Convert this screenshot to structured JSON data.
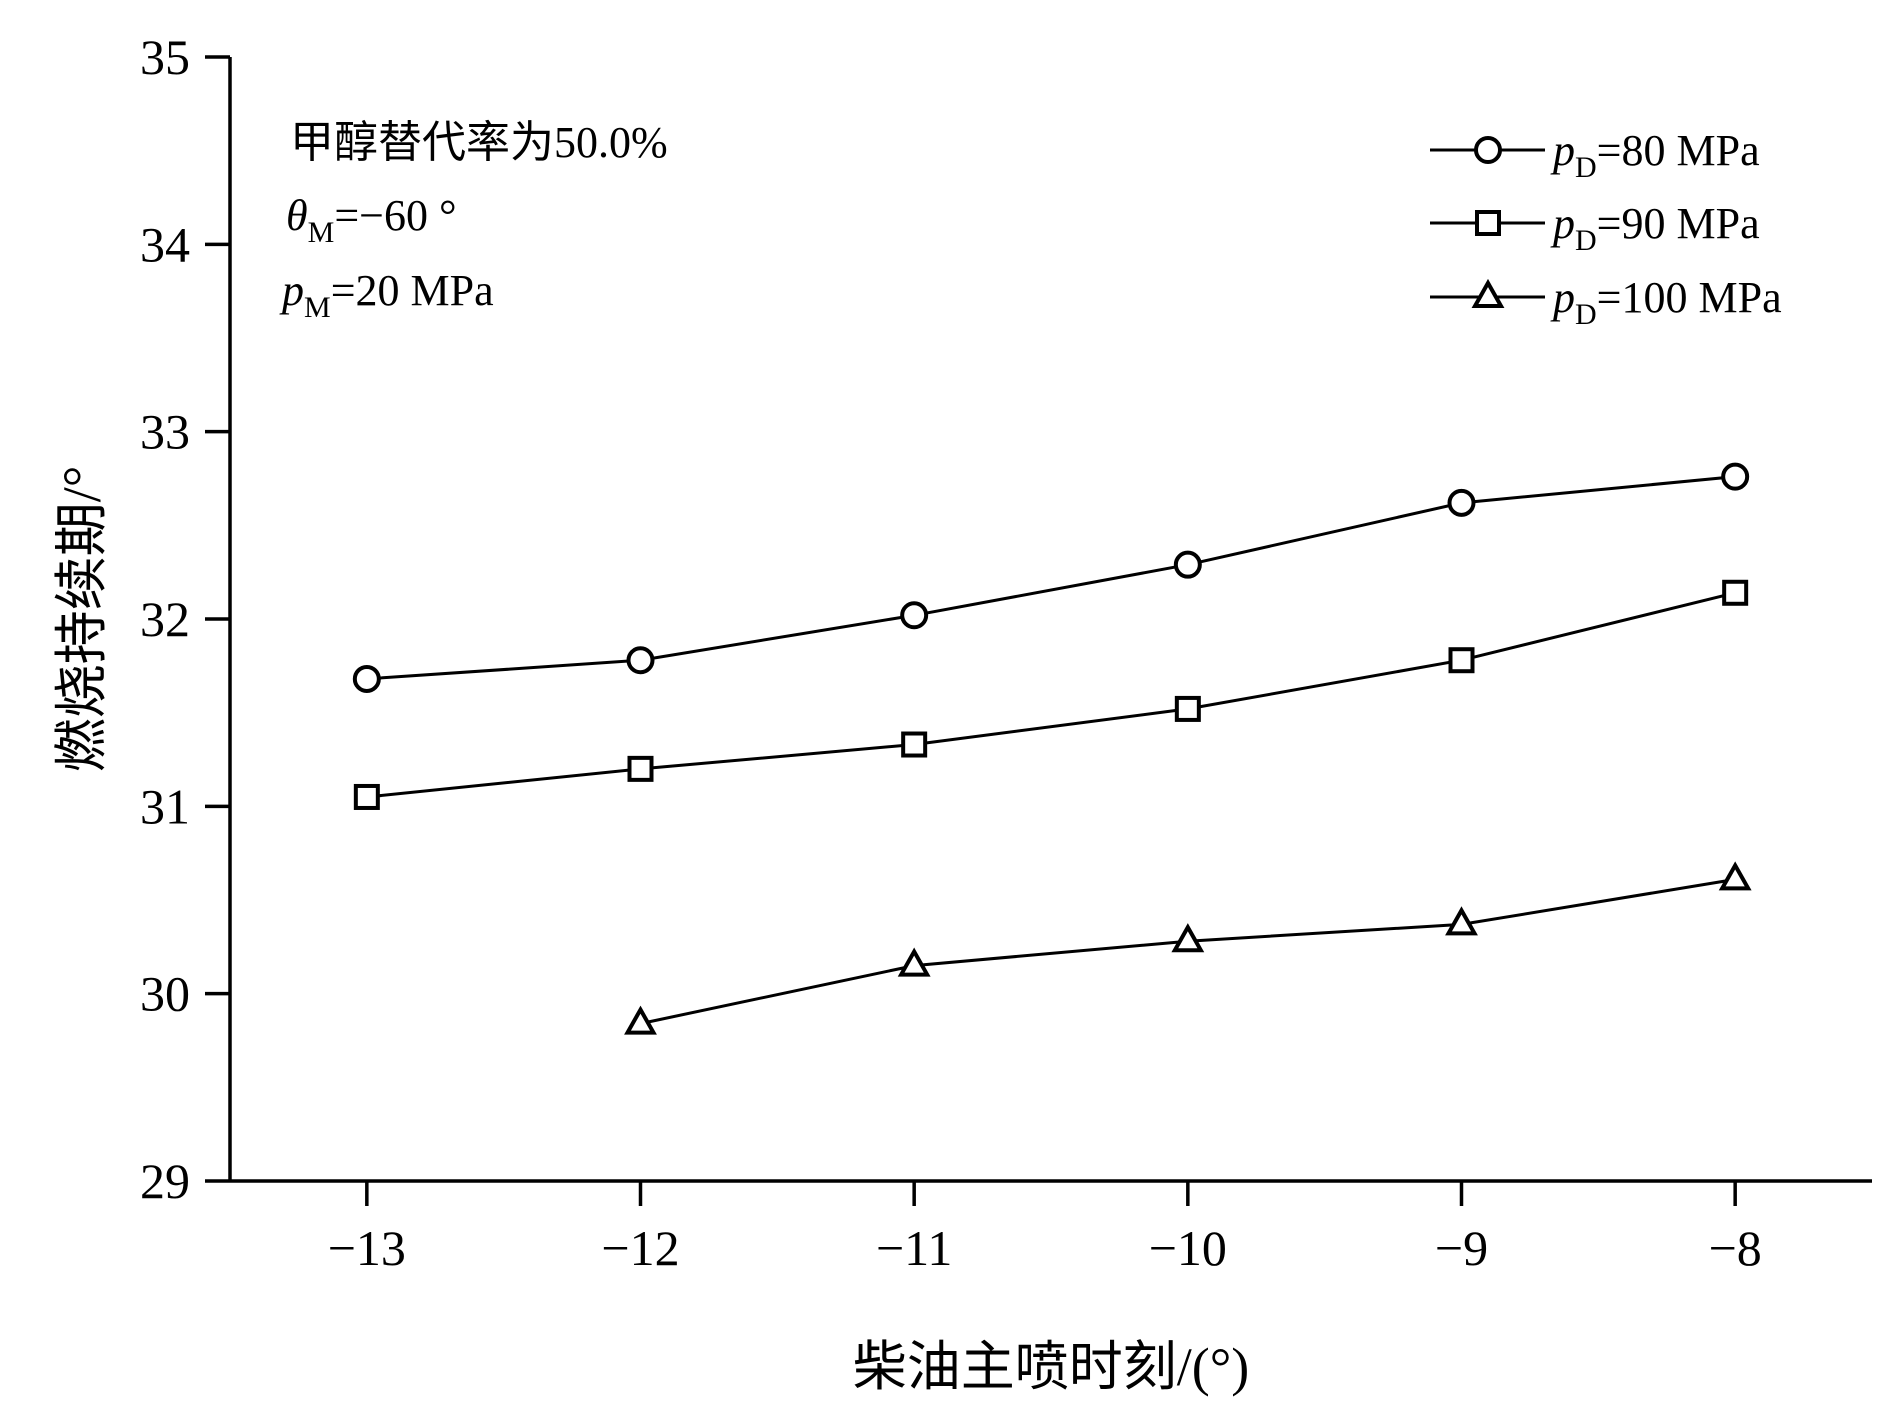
{
  "chart_data": {
    "type": "line",
    "xlabel": "柴油主喷时刻/(°)",
    "ylabel": "燃烧持续期/°",
    "xlim": [
      -13.5,
      -7.5
    ],
    "ylim": [
      29,
      35
    ],
    "x_ticks": [
      -13,
      -12,
      -11,
      -10,
      -9,
      -8
    ],
    "x_tick_labels": [
      "−13",
      "−12",
      "−11",
      "−10",
      "−9",
      "−8"
    ],
    "y_ticks": [
      29,
      30,
      31,
      32,
      33,
      34,
      35
    ],
    "y_tick_labels": [
      "29",
      "30",
      "31",
      "32",
      "33",
      "34",
      "35"
    ],
    "grid": false,
    "legend_position": "top-right",
    "annotations": [
      {
        "id": "rate",
        "text": "甲醇替代率为50.0%"
      },
      {
        "id": "theta",
        "symbol": "θ",
        "sub": "M",
        "rest": "=−60 °"
      },
      {
        "id": "pm",
        "symbol": "p",
        "sub": "M",
        "rest": "=20 MPa"
      }
    ],
    "series": [
      {
        "name": "pD=80 MPa",
        "symbol": "p",
        "sub": "D",
        "rest": "=80 MPa",
        "marker": "circle",
        "x": [
          -13,
          -12,
          -11,
          -10,
          -9,
          -8
        ],
        "y": [
          31.68,
          31.78,
          32.02,
          32.29,
          32.62,
          32.76
        ]
      },
      {
        "name": "pD=90 MPa",
        "symbol": "p",
        "sub": "D",
        "rest": "=90 MPa",
        "marker": "square",
        "x": [
          -13,
          -12,
          -11,
          -10,
          -9,
          -8
        ],
        "y": [
          31.05,
          31.2,
          31.33,
          31.52,
          31.78,
          32.14
        ]
      },
      {
        "name": "pD=100 MPa",
        "symbol": "p",
        "sub": "D",
        "rest": "=100 MPa",
        "marker": "triangle",
        "x": [
          -12,
          -11,
          -10,
          -9,
          -8
        ],
        "y": [
          29.84,
          30.15,
          30.28,
          30.37,
          30.61
        ]
      }
    ]
  }
}
